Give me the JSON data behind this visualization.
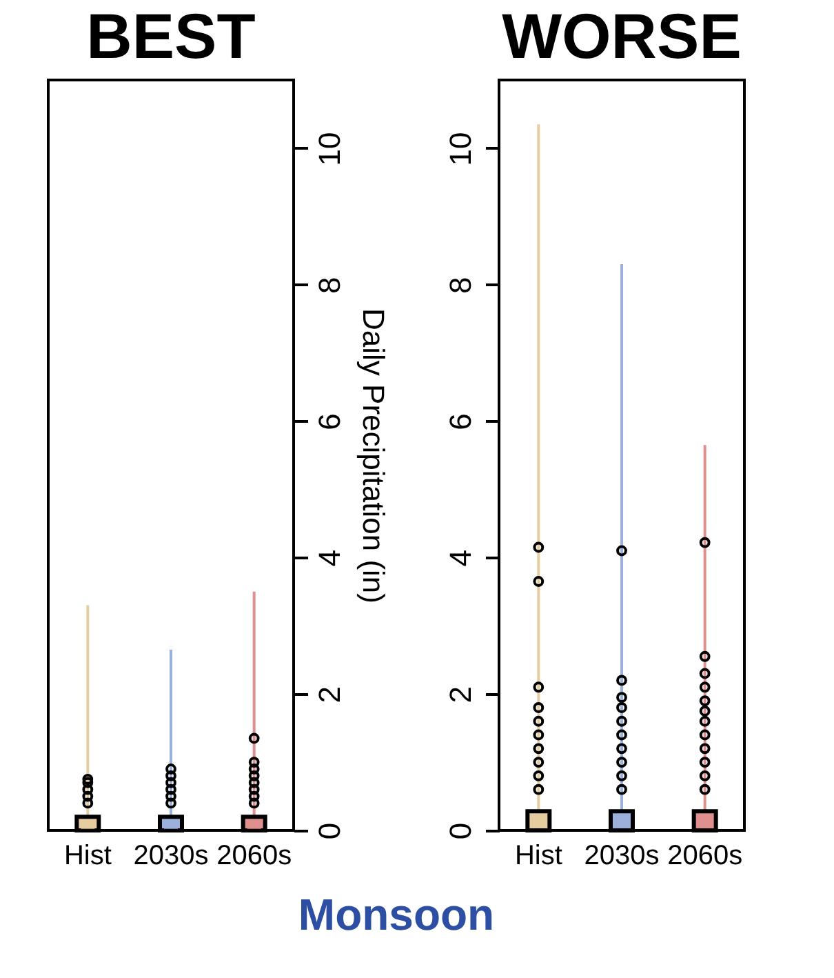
{
  "chart_data": [
    {
      "type": "box",
      "title": "BEST",
      "ylabel": "Daily Precipitation (in)",
      "categories": [
        "Hist",
        "2030s",
        "2060s"
      ],
      "colors": [
        "#e6cd9f",
        "#9cb0dc",
        "#e08f8f"
      ],
      "ylim": [
        0,
        11
      ],
      "yticks": [
        0,
        2,
        4,
        6,
        8,
        10
      ],
      "grid": false,
      "legend": false,
      "annotations": [
        "Monsoon"
      ],
      "boxes": [
        {
          "low": 0,
          "q1": 0,
          "median": 0.05,
          "q3": 0.2,
          "high": 3.3,
          "outliers": [
            0.4,
            0.5,
            0.6,
            0.7,
            0.75
          ]
        },
        {
          "low": 0,
          "q1": 0,
          "median": 0.05,
          "q3": 0.2,
          "high": 2.65,
          "outliers": [
            0.4,
            0.5,
            0.6,
            0.7,
            0.8,
            0.9
          ]
        },
        {
          "low": 0,
          "q1": 0,
          "median": 0.05,
          "q3": 0.2,
          "high": 3.5,
          "outliers": [
            0.4,
            0.5,
            0.6,
            0.7,
            0.8,
            0.9,
            1.0,
            1.35
          ]
        }
      ]
    },
    {
      "type": "box",
      "title": "WORSE",
      "categories": [
        "Hist",
        "2030s",
        "2060s"
      ],
      "colors": [
        "#e6cd9f",
        "#9cb0dc",
        "#e08f8f"
      ],
      "ylim": [
        0,
        11
      ],
      "yticks": [
        0,
        2,
        4,
        6,
        8,
        10
      ],
      "grid": false,
      "legend": false,
      "boxes": [
        {
          "low": 0,
          "q1": 0,
          "median": 0.18,
          "q3": 0.28,
          "high": 10.35,
          "outliers": [
            0.6,
            0.8,
            1.0,
            1.2,
            1.4,
            1.6,
            1.8,
            2.1,
            3.65,
            4.15
          ]
        },
        {
          "low": 0,
          "q1": 0,
          "median": 0.18,
          "q3": 0.28,
          "high": 8.3,
          "outliers": [
            0.6,
            0.8,
            1.0,
            1.2,
            1.4,
            1.6,
            1.8,
            1.95,
            2.2,
            4.1
          ]
        },
        {
          "low": 0,
          "q1": 0,
          "median": 0.18,
          "q3": 0.28,
          "high": 5.65,
          "outliers": [
            0.6,
            0.8,
            1.0,
            1.2,
            1.4,
            1.6,
            1.75,
            1.9,
            2.1,
            2.3,
            2.55,
            4.22
          ]
        }
      ]
    }
  ]
}
